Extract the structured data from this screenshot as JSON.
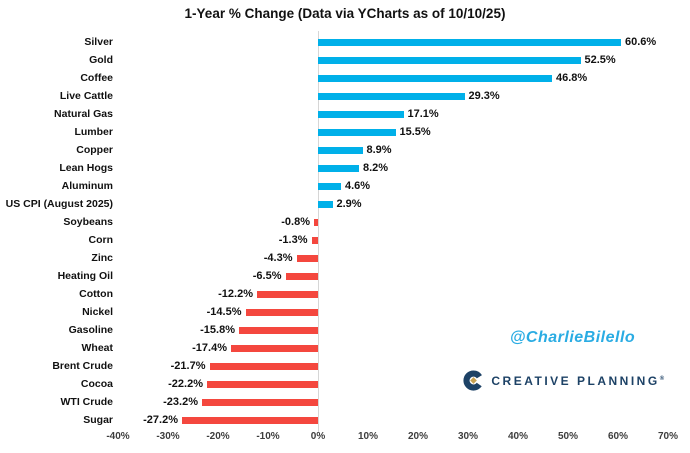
{
  "title": "1-Year % Change (Data via YCharts as of 10/10/25)",
  "chart_data": {
    "type": "bar",
    "orientation": "horizontal",
    "title": "1-Year % Change (Data via YCharts as of 10/10/25)",
    "categories": [
      "Silver",
      "Gold",
      "Coffee",
      "Live Cattle",
      "Natural Gas",
      "Lumber",
      "Copper",
      "Lean Hogs",
      "Aluminum",
      "US CPI (August 2025)",
      "Soybeans",
      "Corn",
      "Zinc",
      "Heating Oil",
      "Cotton",
      "Nickel",
      "Gasoline",
      "Wheat",
      "Brent Crude",
      "Cocoa",
      "WTI Crude",
      "Sugar"
    ],
    "values": [
      60.6,
      52.5,
      46.8,
      29.3,
      17.1,
      15.5,
      8.9,
      8.2,
      4.6,
      2.9,
      -0.8,
      -1.3,
      -4.3,
      -6.5,
      -12.2,
      -14.5,
      -15.8,
      -17.4,
      -21.7,
      -22.2,
      -23.2,
      -27.2
    ],
    "value_labels": [
      "60.6%",
      "52.5%",
      "46.8%",
      "29.3%",
      "17.1%",
      "15.5%",
      "8.9%",
      "8.2%",
      "4.6%",
      "2.9%",
      "-0.8%",
      "-1.3%",
      "-4.3%",
      "-6.5%",
      "-12.2%",
      "-14.5%",
      "-15.8%",
      "-17.4%",
      "-21.7%",
      "-22.2%",
      "-23.2%",
      "-27.2%"
    ],
    "xlim": [
      -40,
      70
    ],
    "x_tick_values": [
      -40,
      -30,
      -20,
      -10,
      0,
      10,
      20,
      30,
      40,
      50,
      60,
      70
    ],
    "x_tick_labels": [
      "-40%",
      "-30%",
      "-20%",
      "-10%",
      "0%",
      "10%",
      "20%",
      "30%",
      "40%",
      "50%",
      "60%",
      "70%"
    ],
    "grid": false,
    "legend": "none",
    "positive_color": "#00B0E9",
    "negative_color": "#F4473E",
    "zero_line_color": "#D6D6D6"
  },
  "watermarks": {
    "handle": "@CharlieBilello",
    "handle_color": "#2AACE3",
    "logo_text": "CREATIVE PLANNING",
    "logo_trademark": "®",
    "logo_color": "#1D4266",
    "logo_accent_color": "#C7A252"
  }
}
